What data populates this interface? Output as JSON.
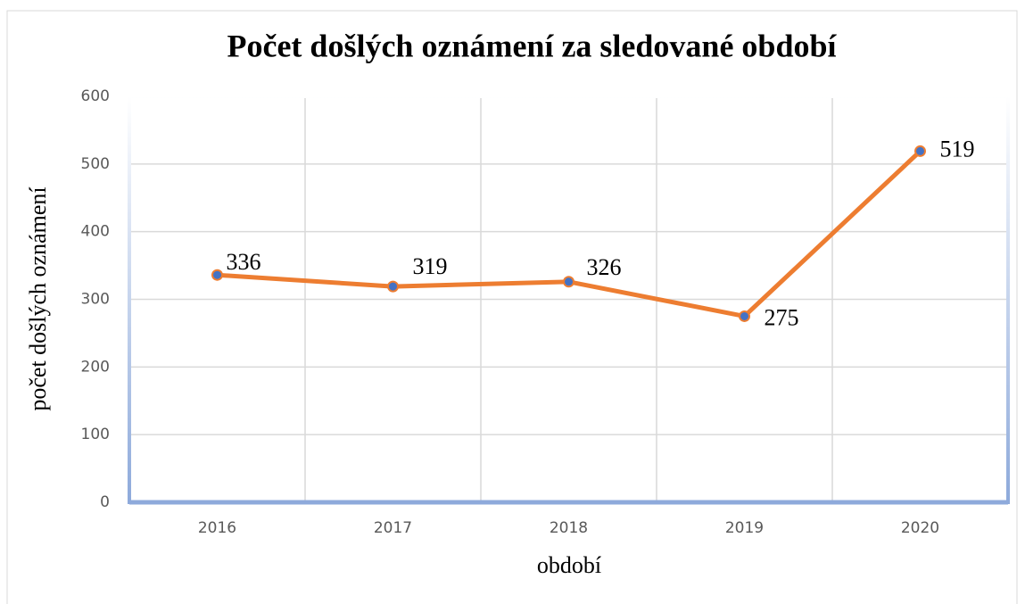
{
  "chart_data": {
    "type": "line",
    "title": "Počet došlých oznámení za sledované období",
    "x_label": "období",
    "y_label": "počet  došlých oznámení",
    "categories": [
      "2016",
      "2017",
      "2018",
      "2019",
      "2020"
    ],
    "series": [
      {
        "name": "počet došlých oznámení",
        "color": "#ed7d31",
        "marker_color": "#4472c4",
        "values": [
          336,
          319,
          326,
          275,
          519
        ]
      }
    ],
    "ylim": [
      0,
      600
    ],
    "yticks": [
      0,
      100,
      200,
      300,
      400,
      500,
      600
    ],
    "grid": true
  }
}
